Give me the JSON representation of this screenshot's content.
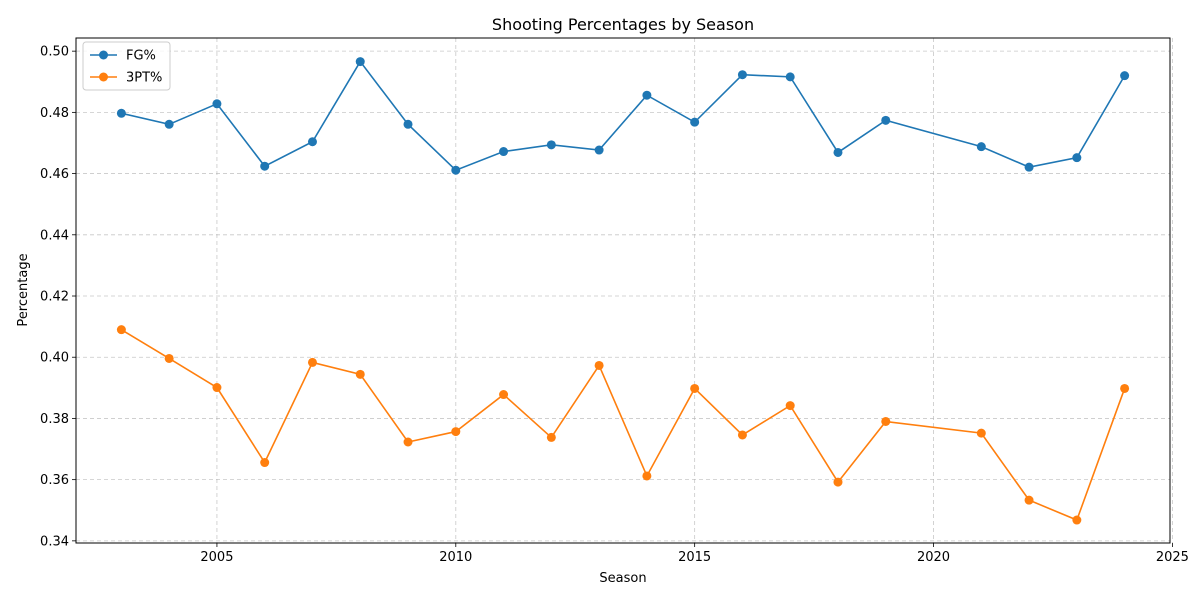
{
  "chart_data": {
    "type": "line",
    "title": "Shooting Percentages by Season",
    "xlabel": "Season",
    "ylabel": "Percentage",
    "xlim": [
      2002.05,
      2024.95
    ],
    "ylim": [
      0.3393,
      0.5043
    ],
    "xticks": [
      2005,
      2010,
      2015,
      2020,
      2025
    ],
    "yticks": [
      0.34,
      0.36,
      0.38,
      0.4,
      0.42,
      0.44,
      0.46,
      0.48,
      0.5
    ],
    "xtick_labels": [
      "2005",
      "2010",
      "2015",
      "2020",
      "2025"
    ],
    "ytick_labels": [
      "0.34",
      "0.36",
      "0.38",
      "0.40",
      "0.42",
      "0.44",
      "0.46",
      "0.48",
      "0.50"
    ],
    "grid": true,
    "legend_position": "top-left",
    "x": [
      2003,
      2004,
      2005,
      2006,
      2007,
      2008,
      2009,
      2010,
      2011,
      2012,
      2013,
      2014,
      2015,
      2016,
      2017,
      2018,
      2019,
      2021,
      2022,
      2023,
      2024
    ],
    "series": [
      {
        "name": "FG%",
        "color": "#1f77b4",
        "values": [
          0.4797,
          0.4761,
          0.4828,
          0.4624,
          0.4704,
          0.4966,
          0.4761,
          0.4611,
          0.4672,
          0.4694,
          0.4677,
          0.4856,
          0.4768,
          0.4923,
          0.4916,
          0.4669,
          0.4774,
          0.4688,
          0.4621,
          0.4652,
          0.492
        ]
      },
      {
        "name": "3PT%",
        "color": "#ff7f0e",
        "values": [
          0.409,
          0.3996,
          0.3901,
          0.3656,
          0.3983,
          0.3944,
          0.3723,
          0.3757,
          0.3878,
          0.3738,
          0.3973,
          0.3612,
          0.3898,
          0.3746,
          0.3842,
          0.3592,
          0.379,
          0.3752,
          0.3533,
          0.3468,
          0.3898
        ]
      }
    ]
  }
}
